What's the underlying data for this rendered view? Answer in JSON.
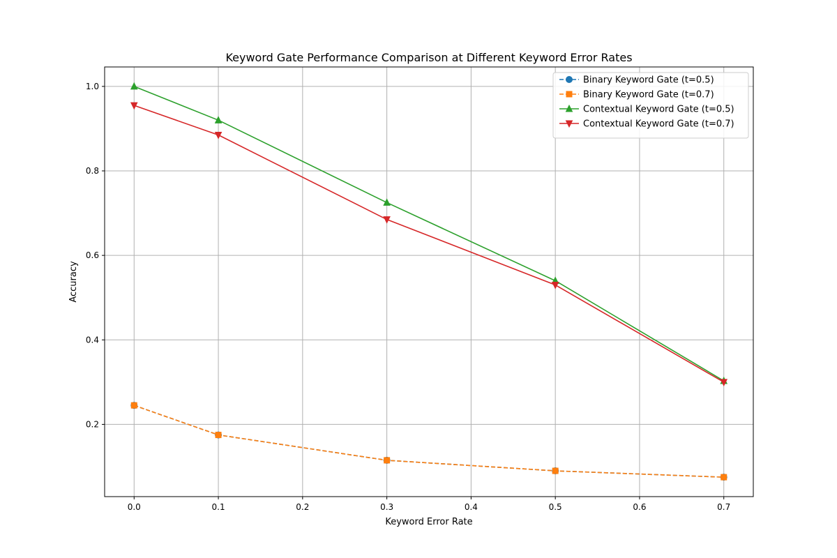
{
  "chart_data": {
    "type": "line",
    "title": "Keyword Gate Performance Comparison at Different Keyword Error Rates",
    "xlabel": "Keyword Error Rate",
    "ylabel": "Accuracy",
    "x": [
      0.0,
      0.1,
      0.3,
      0.5,
      0.7
    ],
    "xlim": [
      -0.035,
      0.735
    ],
    "ylim": [
      0.029,
      1.046
    ],
    "xticks": [
      0.0,
      0.1,
      0.2,
      0.3,
      0.4,
      0.5,
      0.6,
      0.7
    ],
    "xtick_labels": [
      "0.0",
      "0.1",
      "0.2",
      "0.3",
      "0.4",
      "0.5",
      "0.6",
      "0.7"
    ],
    "yticks": [
      0.2,
      0.4,
      0.6,
      0.8,
      1.0
    ],
    "ytick_labels": [
      "0.2",
      "0.4",
      "0.6",
      "0.8",
      "1.0"
    ],
    "grid": true,
    "legend_position": "top-right",
    "series": [
      {
        "name": "Binary Keyword Gate (t=0.5)",
        "values": [
          0.245,
          0.175,
          0.115,
          0.09,
          0.075
        ],
        "color": "#1f77b4",
        "marker": "circle",
        "dash": "dashed"
      },
      {
        "name": "Binary Keyword Gate (t=0.7)",
        "values": [
          0.245,
          0.175,
          0.115,
          0.09,
          0.075
        ],
        "color": "#ff7f0e",
        "marker": "square",
        "dash": "dashed"
      },
      {
        "name": "Contextual Keyword Gate (t=0.5)",
        "values": [
          1.0,
          0.92,
          0.725,
          0.54,
          0.303
        ],
        "color": "#2ca02c",
        "marker": "triangle-up",
        "dash": "solid"
      },
      {
        "name": "Contextual Keyword Gate (t=0.7)",
        "values": [
          0.955,
          0.885,
          0.685,
          0.53,
          0.3
        ],
        "color": "#d62728",
        "marker": "triangle-down",
        "dash": "solid"
      }
    ]
  }
}
